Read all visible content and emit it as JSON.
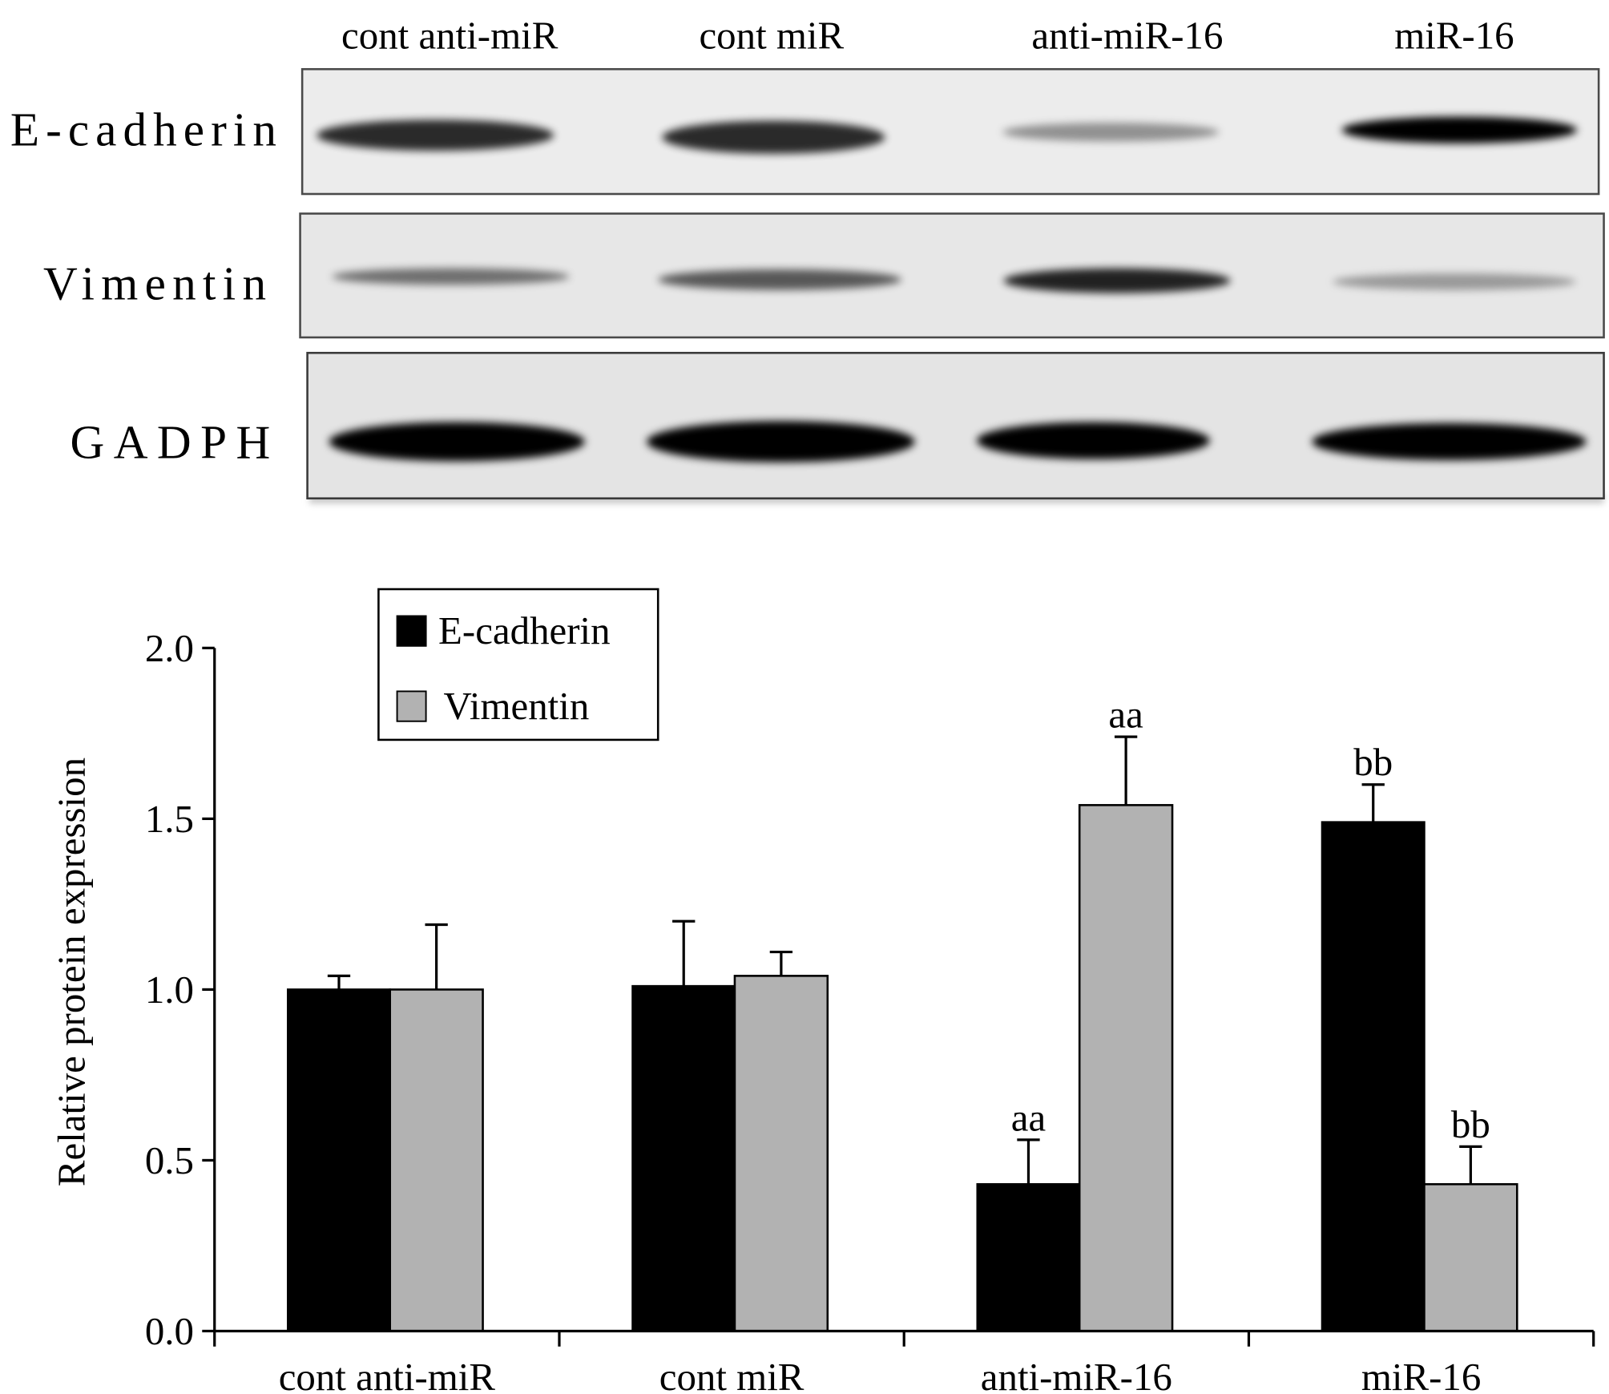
{
  "blot": {
    "lane_labels": [
      "cont anti-miR",
      "cont miR",
      "anti-miR-16",
      "miR-16"
    ],
    "row_labels": [
      "E-cadherin",
      "Vimentin",
      "GADPH"
    ]
  },
  "chart_data": {
    "type": "bar",
    "ylabel": "Relative protein expression",
    "categories": [
      "cont anti-miR",
      "cont miR",
      "anti-miR-16",
      "miR-16"
    ],
    "ylim": [
      0,
      2.0
    ],
    "yticks": [
      "0.0",
      "0.5",
      "1.0",
      "1.5",
      "2.0"
    ],
    "grid": false,
    "legend_position": "top-left",
    "series": [
      {
        "name": "E-cadherin",
        "color": "#000000",
        "values": [
          1.0,
          1.01,
          0.43,
          1.49
        ],
        "errors": [
          0.04,
          0.19,
          0.13,
          0.11
        ],
        "annotations": [
          "",
          "",
          "aa",
          "bb"
        ]
      },
      {
        "name": "Vimentin",
        "color": "#b2b2b2",
        "values": [
          1.0,
          1.04,
          1.54,
          0.43
        ],
        "errors": [
          0.19,
          0.07,
          0.2,
          0.11
        ],
        "annotations": [
          "",
          "",
          "aa",
          "bb"
        ]
      }
    ]
  }
}
